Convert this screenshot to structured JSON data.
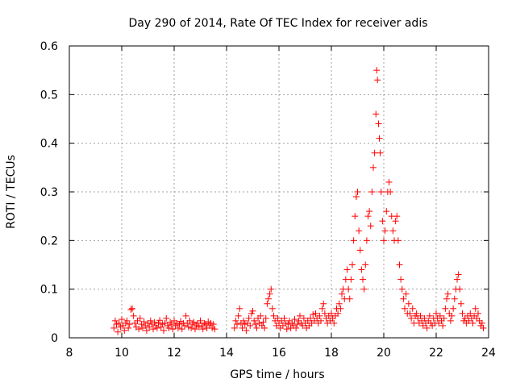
{
  "chart_data": {
    "type": "scatter",
    "title": "Day 290 of 2014, Rate Of TEC Index for receiver adis",
    "xlabel": "GPS time / hours",
    "ylabel": "ROTI / TECUs",
    "xlim": [
      8,
      24
    ],
    "ylim": [
      0,
      0.6
    ],
    "x_ticks": [
      8,
      10,
      12,
      14,
      16,
      18,
      20,
      22,
      24
    ],
    "y_ticks": [
      0,
      0.1,
      0.2,
      0.3,
      0.4,
      0.5,
      0.6
    ],
    "x_tick_labels": [
      "8",
      "10",
      "12",
      "14",
      "16",
      "18",
      "20",
      "22",
      "24"
    ],
    "y_tick_labels": [
      "0",
      "0.1",
      "0.2",
      "0.3",
      "0.4",
      "0.5",
      "0.6"
    ],
    "grid": true,
    "marker": "+",
    "marker_color": "#ff0000",
    "series": [
      {
        "name": "ROTI",
        "data_gap_hours": [
          13.6,
          14.3
        ],
        "points": [
          [
            9.7,
            0.02
          ],
          [
            9.75,
            0.035
          ],
          [
            9.8,
            0.028
          ],
          [
            9.85,
            0.012
          ],
          [
            9.9,
            0.03
          ],
          [
            9.95,
            0.022
          ],
          [
            10.0,
            0.038
          ],
          [
            10.05,
            0.025
          ],
          [
            10.1,
            0.015
          ],
          [
            10.15,
            0.03
          ],
          [
            10.2,
            0.035
          ],
          [
            10.25,
            0.02
          ],
          [
            10.3,
            0.028
          ],
          [
            10.35,
            0.058
          ],
          [
            10.4,
            0.06
          ],
          [
            10.45,
            0.045
          ],
          [
            10.5,
            0.03
          ],
          [
            10.55,
            0.022
          ],
          [
            10.6,
            0.035
          ],
          [
            10.65,
            0.018
          ],
          [
            10.7,
            0.04
          ],
          [
            10.75,
            0.028
          ],
          [
            10.8,
            0.02
          ],
          [
            10.85,
            0.033
          ],
          [
            10.9,
            0.025
          ],
          [
            10.95,
            0.015
          ],
          [
            11.0,
            0.03
          ],
          [
            11.05,
            0.022
          ],
          [
            11.1,
            0.035
          ],
          [
            11.15,
            0.028
          ],
          [
            11.2,
            0.018
          ],
          [
            11.25,
            0.032
          ],
          [
            11.3,
            0.025
          ],
          [
            11.35,
            0.02
          ],
          [
            11.4,
            0.03
          ],
          [
            11.45,
            0.036
          ],
          [
            11.5,
            0.022
          ],
          [
            11.55,
            0.028
          ],
          [
            11.6,
            0.015
          ],
          [
            11.65,
            0.03
          ],
          [
            11.7,
            0.04
          ],
          [
            11.75,
            0.025
          ],
          [
            11.8,
            0.02
          ],
          [
            11.85,
            0.032
          ],
          [
            11.9,
            0.028
          ],
          [
            11.95,
            0.018
          ],
          [
            12.0,
            0.035
          ],
          [
            12.05,
            0.025
          ],
          [
            12.1,
            0.03
          ],
          [
            12.15,
            0.02
          ],
          [
            12.2,
            0.028
          ],
          [
            12.25,
            0.034
          ],
          [
            12.3,
            0.018
          ],
          [
            12.35,
            0.03
          ],
          [
            12.4,
            0.025
          ],
          [
            12.45,
            0.045
          ],
          [
            12.5,
            0.03
          ],
          [
            12.55,
            0.022
          ],
          [
            12.6,
            0.035
          ],
          [
            12.65,
            0.02
          ],
          [
            12.7,
            0.028
          ],
          [
            12.75,
            0.032
          ],
          [
            12.8,
            0.018
          ],
          [
            12.85,
            0.025
          ],
          [
            12.9,
            0.03
          ],
          [
            12.95,
            0.022
          ],
          [
            13.0,
            0.035
          ],
          [
            13.05,
            0.025
          ],
          [
            13.1,
            0.018
          ],
          [
            13.15,
            0.03
          ],
          [
            13.2,
            0.028
          ],
          [
            13.25,
            0.02
          ],
          [
            13.3,
            0.033
          ],
          [
            13.35,
            0.025
          ],
          [
            13.4,
            0.03
          ],
          [
            13.45,
            0.02
          ],
          [
            13.5,
            0.028
          ],
          [
            13.55,
            0.018
          ],
          [
            14.3,
            0.02
          ],
          [
            14.35,
            0.035
          ],
          [
            14.4,
            0.028
          ],
          [
            14.45,
            0.045
          ],
          [
            14.5,
            0.06
          ],
          [
            14.55,
            0.03
          ],
          [
            14.6,
            0.02
          ],
          [
            14.65,
            0.035
          ],
          [
            14.7,
            0.028
          ],
          [
            14.75,
            0.015
          ],
          [
            14.8,
            0.03
          ],
          [
            14.85,
            0.04
          ],
          [
            14.9,
            0.025
          ],
          [
            14.95,
            0.05
          ],
          [
            15.0,
            0.055
          ],
          [
            15.05,
            0.035
          ],
          [
            15.1,
            0.028
          ],
          [
            15.15,
            0.02
          ],
          [
            15.2,
            0.04
          ],
          [
            15.25,
            0.03
          ],
          [
            15.3,
            0.045
          ],
          [
            15.35,
            0.025
          ],
          [
            15.4,
            0.032
          ],
          [
            15.45,
            0.02
          ],
          [
            15.5,
            0.04
          ],
          [
            15.55,
            0.07
          ],
          [
            15.6,
            0.08
          ],
          [
            15.65,
            0.09
          ],
          [
            15.7,
            0.1
          ],
          [
            15.75,
            0.06
          ],
          [
            15.8,
            0.045
          ],
          [
            15.85,
            0.035
          ],
          [
            15.9,
            0.025
          ],
          [
            15.95,
            0.04
          ],
          [
            16.0,
            0.03
          ],
          [
            16.05,
            0.02
          ],
          [
            16.1,
            0.035
          ],
          [
            16.15,
            0.025
          ],
          [
            16.2,
            0.04
          ],
          [
            16.25,
            0.03
          ],
          [
            16.3,
            0.018
          ],
          [
            16.35,
            0.028
          ],
          [
            16.4,
            0.035
          ],
          [
            16.45,
            0.02
          ],
          [
            16.5,
            0.03
          ],
          [
            16.55,
            0.025
          ],
          [
            16.6,
            0.038
          ],
          [
            16.65,
            0.02
          ],
          [
            16.7,
            0.028
          ],
          [
            16.75,
            0.035
          ],
          [
            16.8,
            0.045
          ],
          [
            16.85,
            0.03
          ],
          [
            16.9,
            0.025
          ],
          [
            16.95,
            0.04
          ],
          [
            17.0,
            0.03
          ],
          [
            17.05,
            0.02
          ],
          [
            17.1,
            0.035
          ],
          [
            17.15,
            0.025
          ],
          [
            17.2,
            0.04
          ],
          [
            17.25,
            0.03
          ],
          [
            17.3,
            0.048
          ],
          [
            17.35,
            0.035
          ],
          [
            17.4,
            0.05
          ],
          [
            17.45,
            0.04
          ],
          [
            17.5,
            0.03
          ],
          [
            17.55,
            0.045
          ],
          [
            17.6,
            0.035
          ],
          [
            17.65,
            0.06
          ],
          [
            17.7,
            0.07
          ],
          [
            17.75,
            0.05
          ],
          [
            17.8,
            0.04
          ],
          [
            17.85,
            0.03
          ],
          [
            17.9,
            0.045
          ],
          [
            17.95,
            0.035
          ],
          [
            18.0,
            0.05
          ],
          [
            18.05,
            0.04
          ],
          [
            18.1,
            0.03
          ],
          [
            18.15,
            0.045
          ],
          [
            18.2,
            0.06
          ],
          [
            18.25,
            0.05
          ],
          [
            18.3,
            0.07
          ],
          [
            18.35,
            0.06
          ],
          [
            18.4,
            0.09
          ],
          [
            18.45,
            0.1
          ],
          [
            18.5,
            0.08
          ],
          [
            18.55,
            0.12
          ],
          [
            18.6,
            0.14
          ],
          [
            18.65,
            0.1
          ],
          [
            18.7,
            0.08
          ],
          [
            18.75,
            0.12
          ],
          [
            18.8,
            0.15
          ],
          [
            18.85,
            0.2
          ],
          [
            18.9,
            0.25
          ],
          [
            18.95,
            0.29
          ],
          [
            19.0,
            0.3
          ],
          [
            19.05,
            0.22
          ],
          [
            19.1,
            0.18
          ],
          [
            19.15,
            0.14
          ],
          [
            19.2,
            0.12
          ],
          [
            19.25,
            0.1
          ],
          [
            19.3,
            0.15
          ],
          [
            19.35,
            0.2
          ],
          [
            19.4,
            0.25
          ],
          [
            19.45,
            0.26
          ],
          [
            19.5,
            0.23
          ],
          [
            19.55,
            0.3
          ],
          [
            19.6,
            0.35
          ],
          [
            19.65,
            0.38
          ],
          [
            19.7,
            0.46
          ],
          [
            19.73,
            0.55
          ],
          [
            19.76,
            0.53
          ],
          [
            19.8,
            0.44
          ],
          [
            19.83,
            0.41
          ],
          [
            19.86,
            0.38
          ],
          [
            19.9,
            0.3
          ],
          [
            19.95,
            0.24
          ],
          [
            20.0,
            0.2
          ],
          [
            20.05,
            0.22
          ],
          [
            20.1,
            0.26
          ],
          [
            20.15,
            0.3
          ],
          [
            20.2,
            0.32
          ],
          [
            20.25,
            0.3
          ],
          [
            20.3,
            0.25
          ],
          [
            20.35,
            0.22
          ],
          [
            20.4,
            0.2
          ],
          [
            20.45,
            0.24
          ],
          [
            20.5,
            0.25
          ],
          [
            20.55,
            0.2
          ],
          [
            20.6,
            0.15
          ],
          [
            20.65,
            0.12
          ],
          [
            20.7,
            0.1
          ],
          [
            20.75,
            0.08
          ],
          [
            20.8,
            0.06
          ],
          [
            20.85,
            0.09
          ],
          [
            20.9,
            0.05
          ],
          [
            20.95,
            0.07
          ],
          [
            21.0,
            0.05
          ],
          [
            21.05,
            0.04
          ],
          [
            21.1,
            0.06
          ],
          [
            21.15,
            0.03
          ],
          [
            21.2,
            0.045
          ],
          [
            21.25,
            0.05
          ],
          [
            21.3,
            0.04
          ],
          [
            21.35,
            0.03
          ],
          [
            21.4,
            0.045
          ],
          [
            21.45,
            0.035
          ],
          [
            21.5,
            0.025
          ],
          [
            21.55,
            0.04
          ],
          [
            21.6,
            0.03
          ],
          [
            21.65,
            0.02
          ],
          [
            21.7,
            0.035
          ],
          [
            21.75,
            0.045
          ],
          [
            21.8,
            0.03
          ],
          [
            21.85,
            0.025
          ],
          [
            21.9,
            0.04
          ],
          [
            21.95,
            0.03
          ],
          [
            22.0,
            0.05
          ],
          [
            22.05,
            0.04
          ],
          [
            22.1,
            0.03
          ],
          [
            22.15,
            0.045
          ],
          [
            22.2,
            0.035
          ],
          [
            22.25,
            0.025
          ],
          [
            22.3,
            0.04
          ],
          [
            22.35,
            0.06
          ],
          [
            22.4,
            0.08
          ],
          [
            22.45,
            0.09
          ],
          [
            22.5,
            0.05
          ],
          [
            22.55,
            0.035
          ],
          [
            22.6,
            0.045
          ],
          [
            22.65,
            0.06
          ],
          [
            22.7,
            0.08
          ],
          [
            22.75,
            0.1
          ],
          [
            22.8,
            0.12
          ],
          [
            22.85,
            0.13
          ],
          [
            22.9,
            0.1
          ],
          [
            22.95,
            0.07
          ],
          [
            23.0,
            0.05
          ],
          [
            23.05,
            0.035
          ],
          [
            23.1,
            0.04
          ],
          [
            23.15,
            0.03
          ],
          [
            23.2,
            0.045
          ],
          [
            23.25,
            0.035
          ],
          [
            23.3,
            0.05
          ],
          [
            23.35,
            0.04
          ],
          [
            23.4,
            0.03
          ],
          [
            23.45,
            0.045
          ],
          [
            23.5,
            0.06
          ],
          [
            23.55,
            0.04
          ],
          [
            23.6,
            0.05
          ],
          [
            23.65,
            0.035
          ],
          [
            23.7,
            0.025
          ],
          [
            23.75,
            0.03
          ],
          [
            23.8,
            0.02
          ]
        ]
      }
    ]
  }
}
